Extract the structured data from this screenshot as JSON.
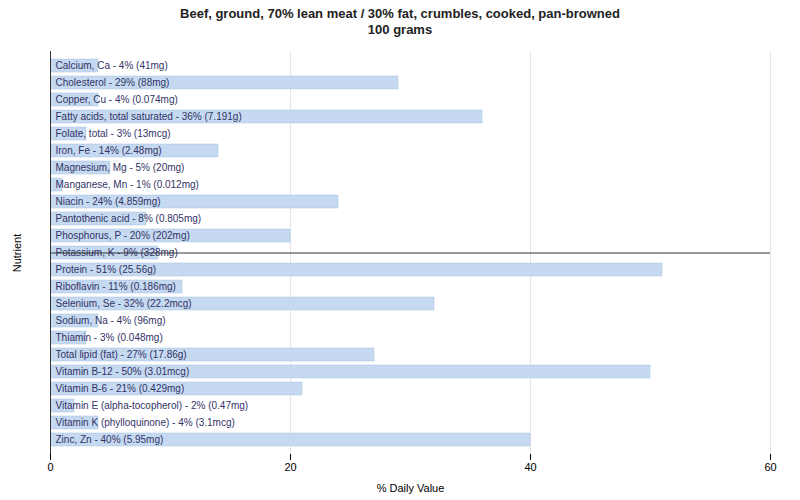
{
  "chart_data": {
    "type": "bar",
    "orientation": "horizontal",
    "title": "Beef, ground, 70% lean meat / 30% fat, crumbles, cooked, pan-browned\n100 grams",
    "xlabel": "% Daily Value",
    "ylabel": "Nutrient",
    "categories": [
      "Calcium, Ca - 4% (41mg)",
      "Cholesterol - 29% (88mg)",
      "Copper, Cu - 4% (0.074mg)",
      "Fatty acids, total saturated - 36% (7.191g)",
      "Folate, total - 3% (13mcg)",
      "Iron, Fe - 14% (2.48mg)",
      "Magnesium, Mg - 5% (20mg)",
      "Manganese, Mn - 1% (0.012mg)",
      "Niacin - 24% (4.859mg)",
      "Pantothenic acid - 8% (0.805mg)",
      "Phosphorus, P - 20% (202mg)",
      "Potassium, K - 9% (328mg)",
      "Protein - 51% (25.56g)",
      "Riboflavin - 11% (0.186mg)",
      "Selenium, Se - 32% (22.2mcg)",
      "Sodium, Na - 4% (96mg)",
      "Thiamin - 3% (0.048mg)",
      "Total lipid (fat) - 27% (17.86g)",
      "Vitamin B-12 - 50% (3.01mcg)",
      "Vitamin B-6 - 21% (0.429mg)",
      "Vitamin E (alpha-tocopherol) - 2% (0.47mg)",
      "Vitamin K (phylloquinone) - 4% (3.1mcg)",
      "Zinc, Zn - 40% (5.95mg)"
    ],
    "values": [
      4,
      29,
      4,
      36,
      3,
      14,
      5,
      1,
      24,
      8,
      20,
      9,
      51,
      11,
      32,
      4,
      3,
      27,
      50,
      21,
      2,
      4,
      40
    ],
    "color": "#c5d9f0",
    "xlim": [
      0,
      60
    ],
    "xticks": [
      0,
      20,
      40,
      60
    ],
    "grid": true,
    "tick_labels": "x"
  }
}
